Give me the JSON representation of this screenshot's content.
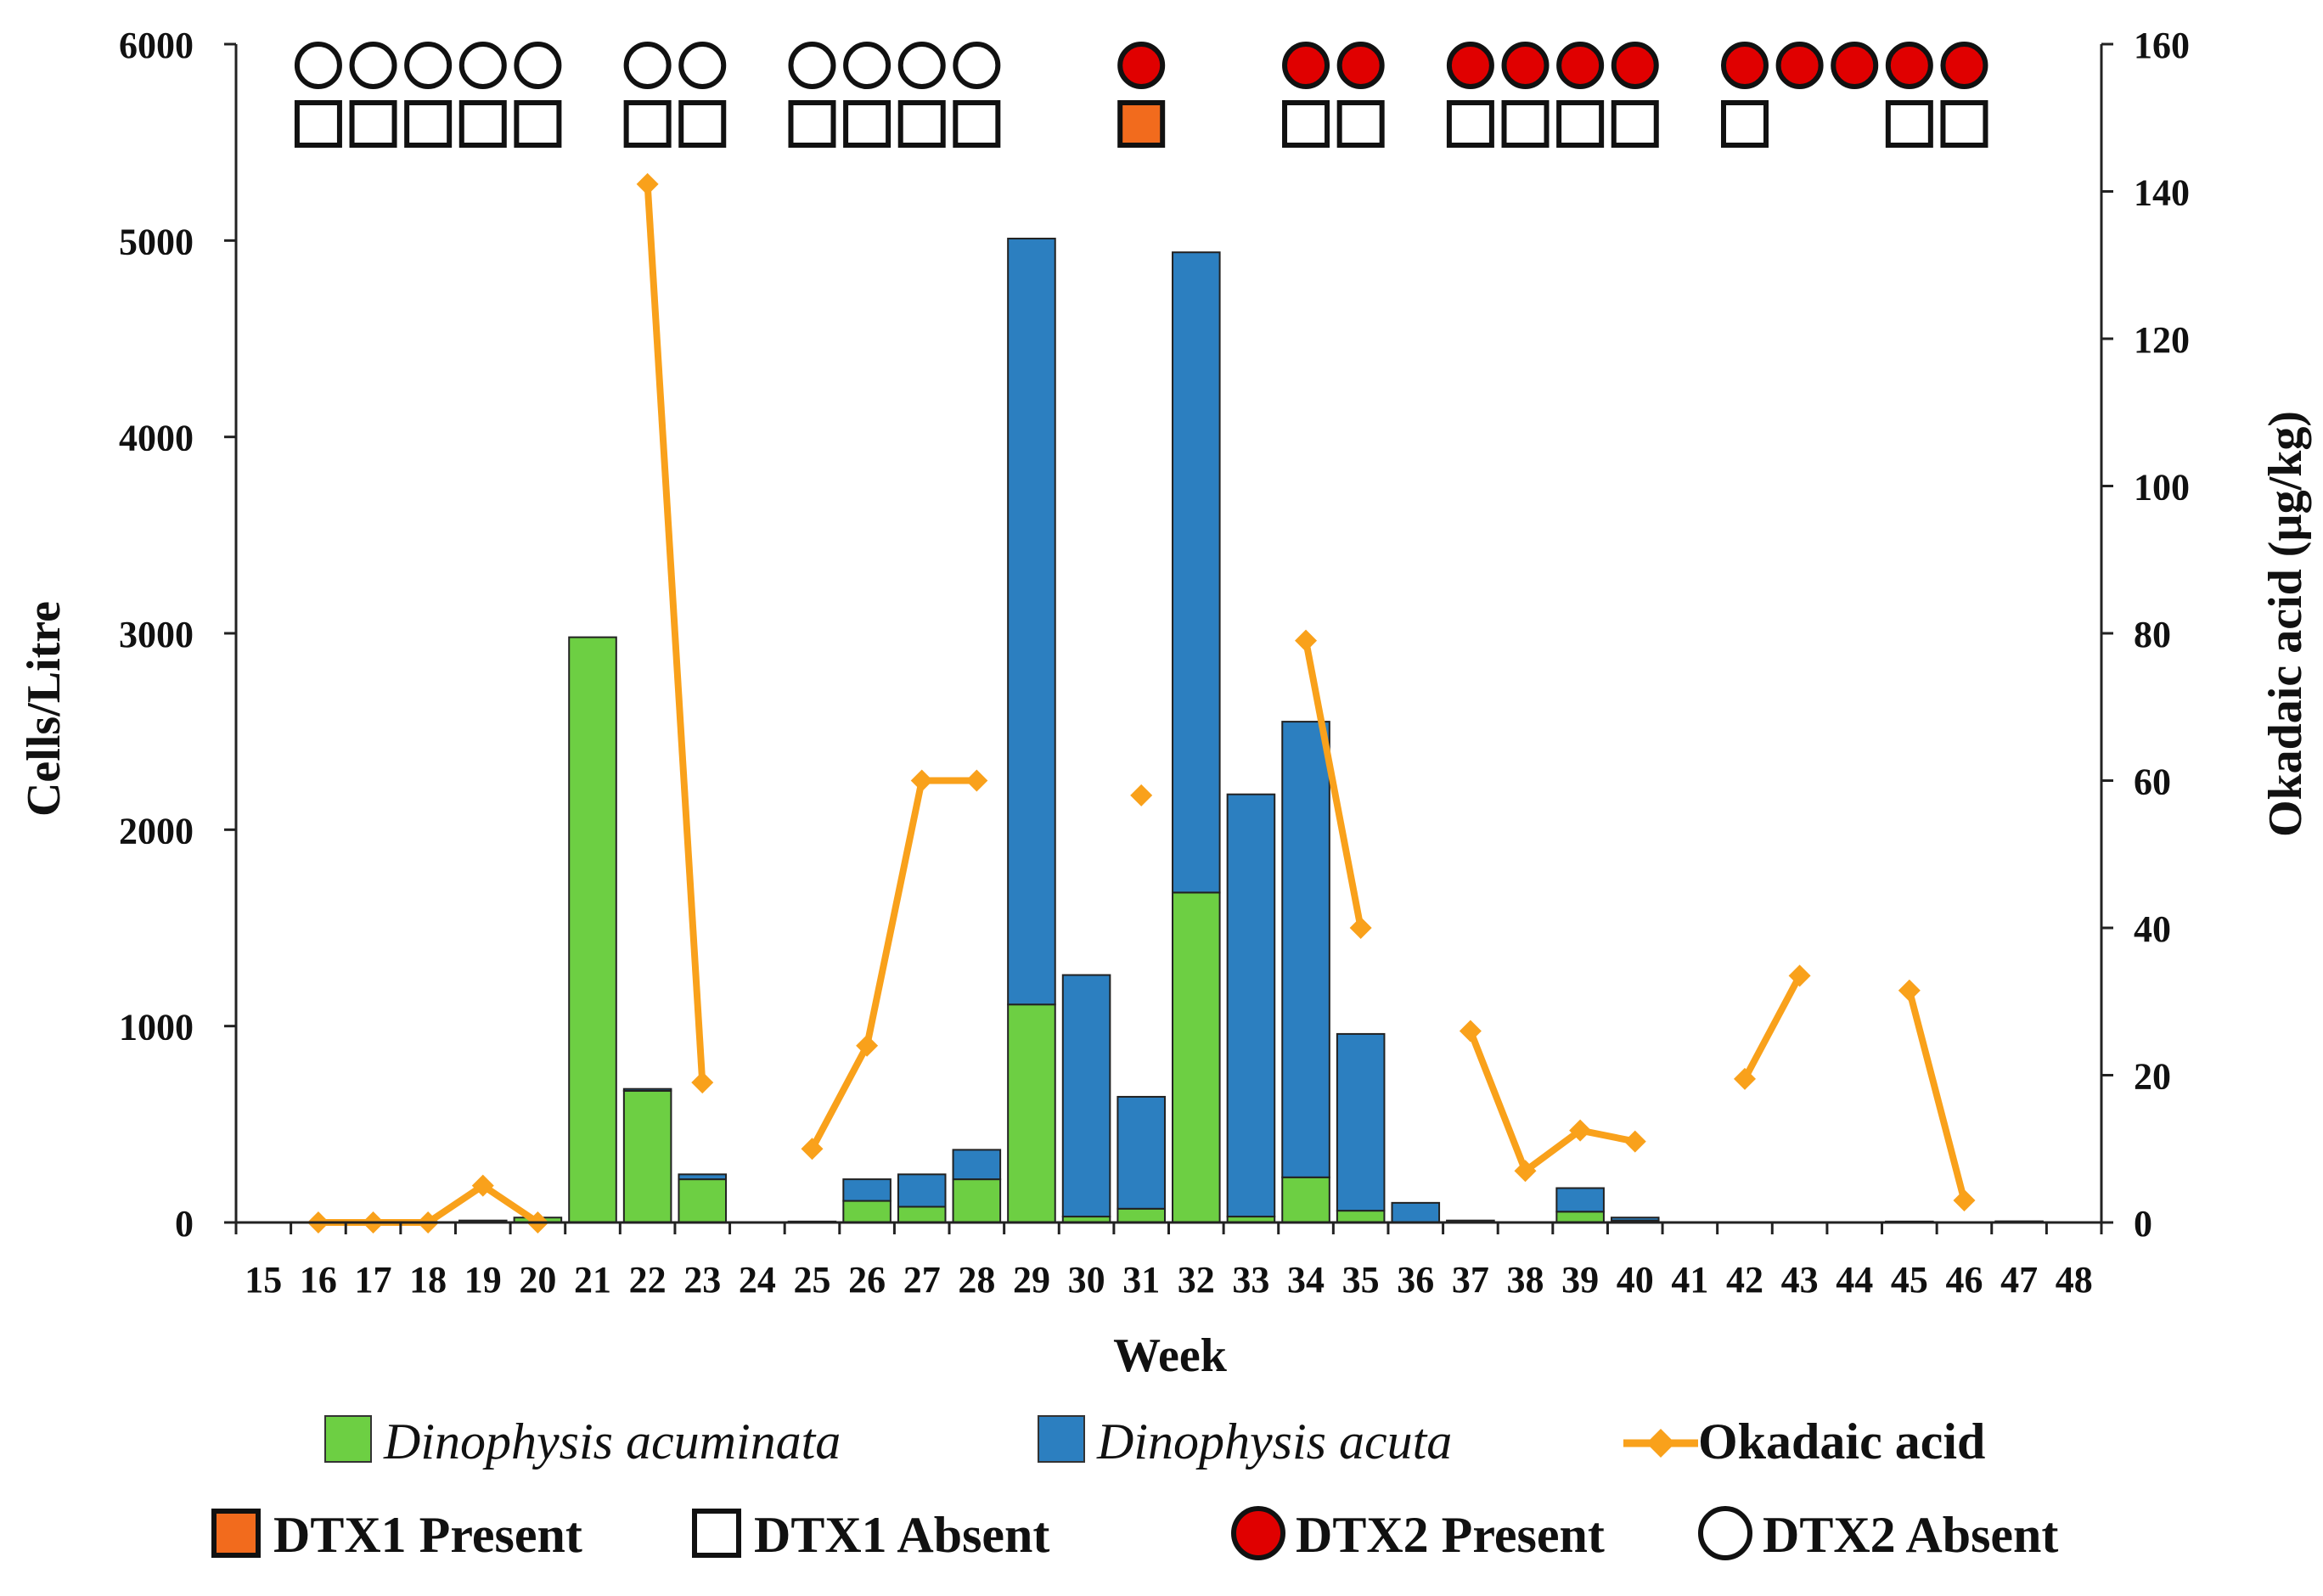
{
  "chart_data": {
    "type": "bar",
    "stacked": true,
    "xlabel": "Week",
    "ylabel": "Cells/Litre",
    "y2label": "Okadaic acid (µg/kg)",
    "weeks": [
      15,
      16,
      17,
      18,
      19,
      20,
      21,
      22,
      23,
      24,
      25,
      26,
      27,
      28,
      29,
      30,
      31,
      32,
      33,
      34,
      35,
      36,
      37,
      38,
      39,
      40,
      41,
      42,
      43,
      44,
      45,
      46,
      47,
      48
    ],
    "ylim": [
      0,
      6000
    ],
    "yticks": [
      0,
      1000,
      2000,
      3000,
      4000,
      5000,
      6000
    ],
    "y2lim": [
      0,
      160
    ],
    "y2ticks": [
      0,
      20,
      40,
      60,
      80,
      100,
      120,
      140,
      160
    ],
    "series": [
      {
        "name": "Dinophysis acuminata",
        "kind": "bar",
        "color": "#6dcf43",
        "values": [
          0,
          0,
          0,
          0,
          10,
          25,
          2980,
          670,
          220,
          0,
          5,
          110,
          80,
          220,
          1110,
          30,
          70,
          1680,
          30,
          230,
          60,
          0,
          5,
          0,
          55,
          10,
          0,
          0,
          0,
          0,
          5,
          0,
          3,
          0
        ]
      },
      {
        "name": "Dinophysis acuta",
        "kind": "bar",
        "color": "#2c7fc0",
        "values": [
          0,
          0,
          0,
          0,
          0,
          0,
          0,
          10,
          25,
          0,
          0,
          110,
          165,
          150,
          3900,
          1230,
          570,
          3260,
          2150,
          2320,
          900,
          100,
          5,
          0,
          120,
          15,
          0,
          0,
          0,
          0,
          0,
          0,
          3,
          0
        ]
      },
      {
        "name": "Okadaic acid",
        "kind": "line",
        "axis": "y2",
        "color": "#f9a11b",
        "values": [
          null,
          0,
          0,
          0,
          5,
          0,
          null,
          141,
          19,
          null,
          10,
          24,
          60,
          60,
          null,
          null,
          58,
          null,
          null,
          79,
          40,
          null,
          26,
          7,
          12.5,
          11,
          null,
          19.5,
          33.5,
          null,
          31.5,
          3,
          null,
          null
        ]
      }
    ],
    "dtx2": [
      null,
      "absent",
      "absent",
      "absent",
      "absent",
      "absent",
      null,
      "absent",
      "absent",
      null,
      "absent",
      "absent",
      "absent",
      "absent",
      null,
      null,
      "present",
      null,
      null,
      "present",
      "present",
      null,
      "present",
      "present",
      "present",
      "present",
      null,
      "present",
      "present",
      "present",
      "present",
      "present",
      null,
      null
    ],
    "dtx1": [
      null,
      "absent",
      "absent",
      "absent",
      "absent",
      "absent",
      null,
      "absent",
      "absent",
      null,
      "absent",
      "absent",
      "absent",
      "absent",
      null,
      null,
      "present",
      null,
      null,
      "absent",
      "absent",
      null,
      "absent",
      "absent",
      "absent",
      "absent",
      null,
      "absent",
      null,
      null,
      "absent",
      "absent",
      null,
      null
    ],
    "legend": [
      {
        "label": "Dinophysis acuminata",
        "marker": "green-bar-swatch"
      },
      {
        "label": "Dinophysis acuta",
        "marker": "blue-bar-swatch"
      },
      {
        "label": "Okadaic acid",
        "marker": "orange-diamond-line"
      },
      {
        "label": "DTX1 Present",
        "marker": "orange-square"
      },
      {
        "label": "DTX1 Absent",
        "marker": "white-square"
      },
      {
        "label": "DTX2 Present",
        "marker": "red-circle"
      },
      {
        "label": "DTX2 Absent",
        "marker": "white-circle"
      }
    ],
    "colors": {
      "acuminata": "#6dcf43",
      "acuta": "#2c7fc0",
      "okadaic": "#f9a11b",
      "dtx1_present": "#f26b1d",
      "dtx2_present": "#e00000",
      "absent_fill": "#ffffff",
      "marker_stroke": "#111111"
    }
  }
}
